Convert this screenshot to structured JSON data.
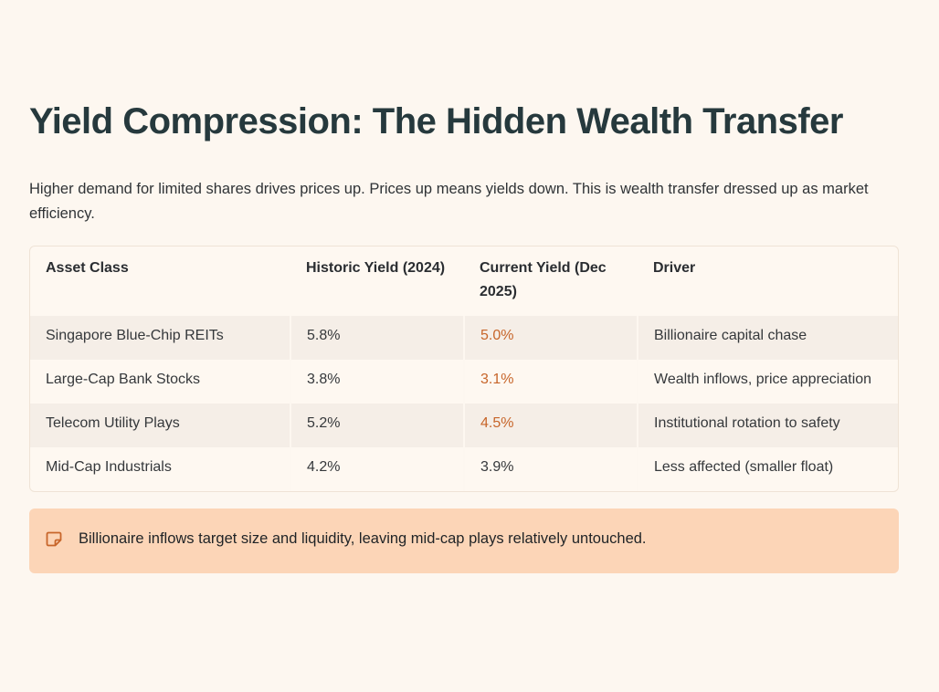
{
  "title": "Yield Compression: The Hidden Wealth Transfer",
  "subtitle": "Higher demand for limited shares drives prices up. Prices up means yields down. This is wealth transfer dressed up as market efficiency.",
  "table": {
    "headers": [
      "Asset Class",
      "Historic Yield (2024)",
      "Current Yield (Dec 2025)",
      "Driver"
    ],
    "rows": [
      [
        "Singapore Blue-Chip REITs",
        "5.8%",
        "5.0%",
        "Billionaire capital chase"
      ],
      [
        "Large-Cap Bank Stocks",
        "3.8%",
        "3.1%",
        "Wealth inflows, price appreciation"
      ],
      [
        "Telecom Utility Plays",
        "5.2%",
        "4.5%",
        "Institutional rotation to safety"
      ],
      [
        "Mid-Cap Industrials",
        "4.2%",
        "3.9%",
        "Less affected (smaller float)"
      ]
    ]
  },
  "callout": {
    "icon": "note-icon",
    "text": "Billionaire inflows target size and liquidity, leaving mid-cap plays relatively untouched."
  },
  "colors": {
    "background": "#fdf7f0",
    "title": "#26393d",
    "accent": "#c7652a",
    "callout_bg": "#fcd5b7",
    "row_shade": "#f5eee7"
  }
}
